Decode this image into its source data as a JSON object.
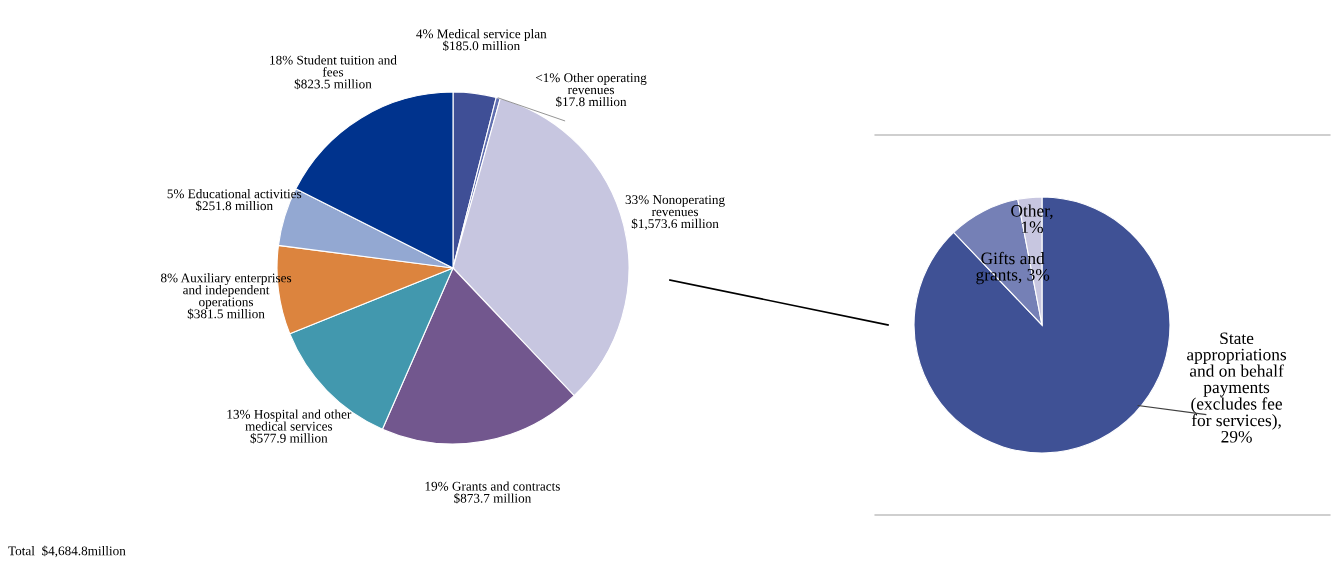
{
  "chart_data": [
    {
      "type": "pie",
      "categories": [
        "4% Medical service plan",
        "<1% Other operating\nrevenues",
        "33% Nonoperating\nrevenues",
        "19% Grants and contracts",
        "13% Hospital and other\nmedical services",
        "8% Auxiliary enterprises\nand independent\noperations",
        "5% Educational activities",
        "18% Student tuition and\nfees"
      ],
      "values": [
        185.0,
        17.8,
        1573.6,
        873.7,
        577.9,
        381.5,
        251.8,
        823.5
      ],
      "value_labels": [
        "$185.0 million",
        "$17.8 million",
        "$1,573.6 million",
        "$873.7 million",
        "$577.9 million",
        "$381.5 million",
        "$251.8 million",
        "$823.5 million"
      ],
      "colors": [
        "#3f4f96",
        "#6270b0",
        "#c7c6e0",
        "#72578e",
        "#4298ae",
        "#dc843e",
        "#93a8d2",
        "#00338d"
      ],
      "annotations": [
        "Total  $4,684.8million"
      ]
    },
    {
      "type": "pie",
      "categories": [
        "State\nappropriations\nand on behalf\npayments\n(excludes fee\nfor services),\n29%",
        "Gifts and\ngrants, 3%",
        "Other,\n1%"
      ],
      "values": [
        29,
        3,
        1
      ],
      "colors": [
        "#3f5195",
        "#7580b6",
        "#c7c6e0"
      ]
    }
  ]
}
